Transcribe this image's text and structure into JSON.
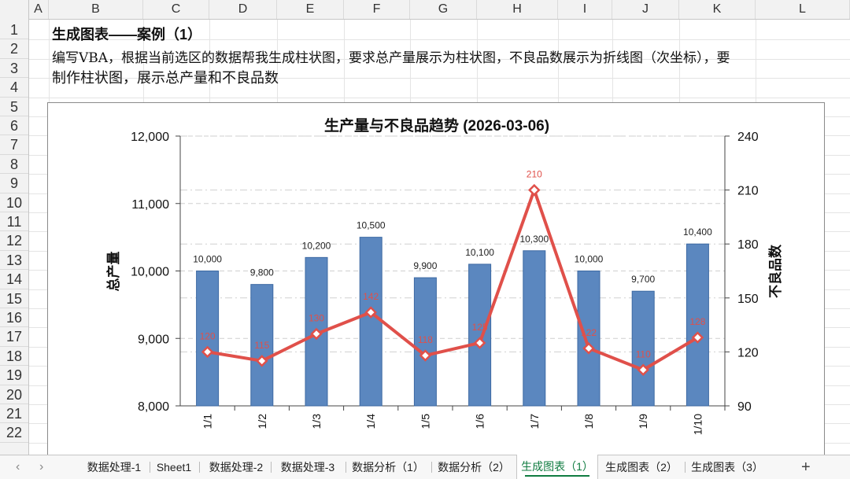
{
  "columns": [
    "A",
    "B",
    "C",
    "D",
    "E",
    "F",
    "G",
    "H",
    "I",
    "J",
    "K",
    "L"
  ],
  "rows": [
    "1",
    "2",
    "3",
    "4",
    "5",
    "6",
    "7",
    "8",
    "9",
    "10",
    "11",
    "12",
    "13",
    "14",
    "15",
    "16",
    "17",
    "18",
    "19",
    "20",
    "21",
    "22"
  ],
  "cells": {
    "title": "生成图表——案例（1）",
    "line2": "编写VBA，根据当前选区的数据帮我生成柱状图，要求总产量展示为柱状图，不良品数展示为折线图（次坐标），要",
    "line3": "制作柱状图，展示总产量和不良品数"
  },
  "chart_data": {
    "type": "bar",
    "title": "生产量与不良品趋势 (2026-03-06)",
    "categories": [
      "1/1",
      "1/2",
      "1/3",
      "1/4",
      "1/5",
      "1/6",
      "1/7",
      "1/8",
      "1/9",
      "1/10"
    ],
    "series": [
      {
        "name": "",
        "kind": "bar",
        "axis": "primary",
        "values": [
          10000,
          9800,
          10200,
          10500,
          9900,
          10100,
          10300,
          10000,
          9700,
          10400
        ],
        "labels": [
          "10,000",
          "9,800",
          "10,200",
          "10,500",
          "9,900",
          "10,100",
          "10,300",
          "10,000",
          "9,700",
          "10,400"
        ],
        "color": "#5b87bf"
      },
      {
        "name": "",
        "kind": "line",
        "axis": "secondary",
        "values": [
          120,
          115,
          130,
          142,
          118,
          125,
          210,
          122,
          110,
          128
        ],
        "labels": [
          "120",
          "115",
          "130",
          "142",
          "118",
          "125",
          "210",
          "122",
          "110",
          "128"
        ],
        "color": "#e0504a"
      }
    ],
    "ylabel": "总产量",
    "y2label": "不良品数",
    "ylim": [
      8000,
      12000
    ],
    "yticks": [
      "8,000",
      "9,000",
      "10,000",
      "11,000",
      "12,000"
    ],
    "y2lim": [
      90,
      240
    ],
    "y2ticks": [
      "90",
      "120",
      "150",
      "180",
      "210",
      "240"
    ],
    "grid": true
  },
  "sheet_tabs": [
    {
      "label": "数据处理-1",
      "active": false
    },
    {
      "label": "Sheet1",
      "active": false
    },
    {
      "label": "数据处理-2",
      "active": false
    },
    {
      "label": "数据处理-3",
      "active": false
    },
    {
      "label": "数据分析（1）",
      "active": false
    },
    {
      "label": "数据分析（2）",
      "active": false
    },
    {
      "label": "生成图表（1）",
      "active": true
    },
    {
      "label": "生成图表（2）",
      "active": false
    },
    {
      "label": "生成图表（3）",
      "active": false
    }
  ],
  "tabbar": {
    "prev": "‹",
    "next": "›",
    "add": "+"
  },
  "colors": {
    "accent": "#107c41",
    "bar": "#5b87bf",
    "line": "#e0504a"
  }
}
